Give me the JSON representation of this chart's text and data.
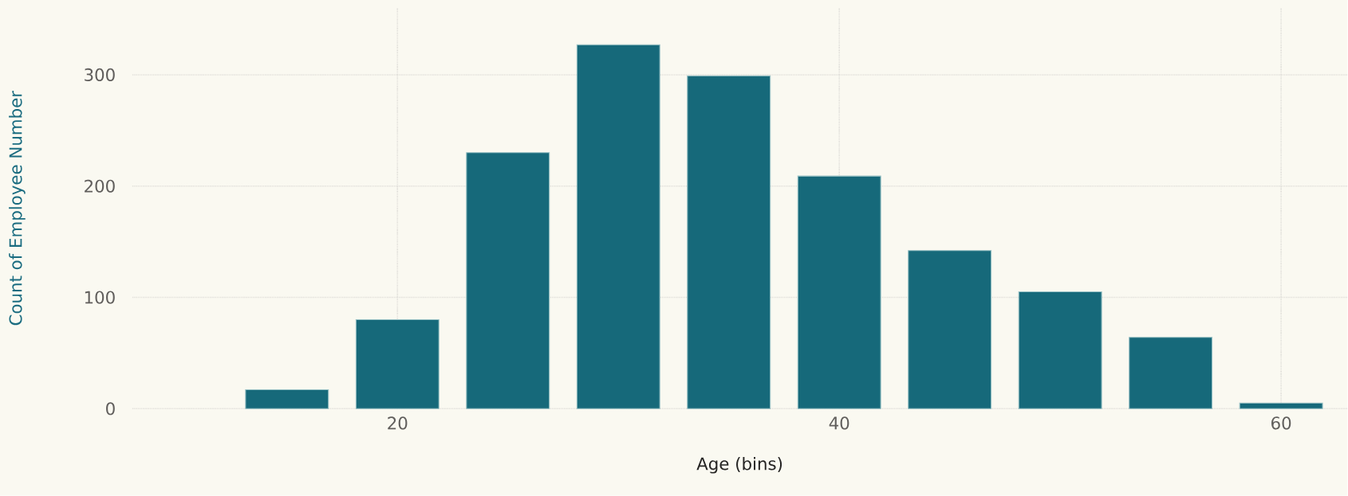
{
  "chart_data": {
    "type": "histogram",
    "xlabel": "Age (bins)",
    "ylabel": "Count of Employee Number",
    "bins": [
      12.5,
      17.5,
      22.5,
      27.5,
      32.5,
      37.5,
      42.5,
      47.5,
      52.5,
      57.5,
      62.5
    ],
    "values": [
      17,
      80,
      230,
      327,
      299,
      209,
      142,
      105,
      64,
      5
    ],
    "color": "#16697a",
    "xlim": [
      8,
      63
    ],
    "ylim": [
      0,
      360
    ],
    "xticks": [
      20,
      40,
      60
    ],
    "yticks": [
      0,
      100,
      200,
      300
    ],
    "grid": true
  }
}
